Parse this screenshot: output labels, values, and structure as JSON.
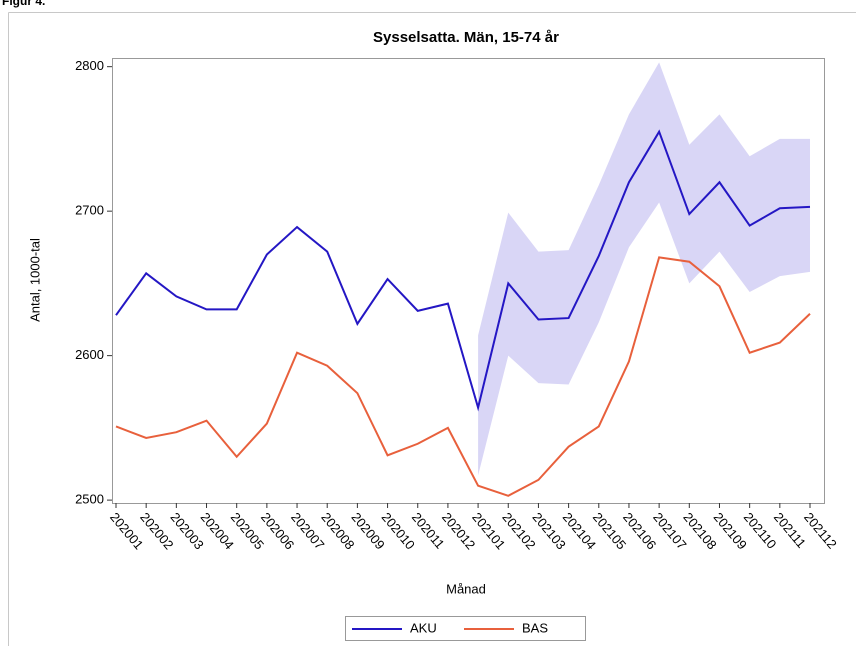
{
  "figure_label": "Figur 4.",
  "chart_data": {
    "type": "line",
    "title": "Sysselsatta. Män, 15-74 år",
    "xlabel": "Månad",
    "ylabel": "Antal, 1000-tal",
    "categories": [
      "202001",
      "202002",
      "202003",
      "202004",
      "202005",
      "202006",
      "202007",
      "202008",
      "202009",
      "202010",
      "202011",
      "202012",
      "202101",
      "202102",
      "202103",
      "202104",
      "202105",
      "202106",
      "202107",
      "202108",
      "202109",
      "202110",
      "202111",
      "202112"
    ],
    "series": [
      {
        "name": "AKU",
        "color": "#2417c4",
        "values": [
          2628,
          2657,
          2641,
          2632,
          2632,
          2670,
          2689,
          2672,
          2622,
          2653,
          2631,
          2636,
          2564,
          2650,
          2625,
          2626,
          2669,
          2720,
          2755,
          2698,
          2720,
          2690,
          2702,
          2703
        ]
      },
      {
        "name": "BAS",
        "color": "#e8603c",
        "values": [
          2551,
          2543,
          2547,
          2555,
          2530,
          2553,
          2602,
          2593,
          2574,
          2531,
          2539,
          2550,
          2510,
          2503,
          2514,
          2537,
          2551,
          2596,
          2668,
          2665,
          2648,
          2602,
          2609,
          2629
        ]
      }
    ],
    "band": {
      "color": "#d9d6f6",
      "upper": [
        null,
        null,
        null,
        null,
        null,
        null,
        null,
        null,
        null,
        null,
        null,
        null,
        2614,
        2699,
        2672,
        2673,
        2718,
        2767,
        2803,
        2746,
        2767,
        2738,
        2750,
        2750
      ],
      "lower": [
        null,
        null,
        null,
        null,
        null,
        null,
        null,
        null,
        null,
        null,
        null,
        null,
        2517,
        2600,
        2581,
        2580,
        2623,
        2675,
        2706,
        2650,
        2672,
        2644,
        2655,
        2658
      ]
    },
    "ylim": [
      2498,
      2806
    ],
    "yticks": [
      2500,
      2600,
      2700,
      2800
    ],
    "legend": "bottom"
  }
}
